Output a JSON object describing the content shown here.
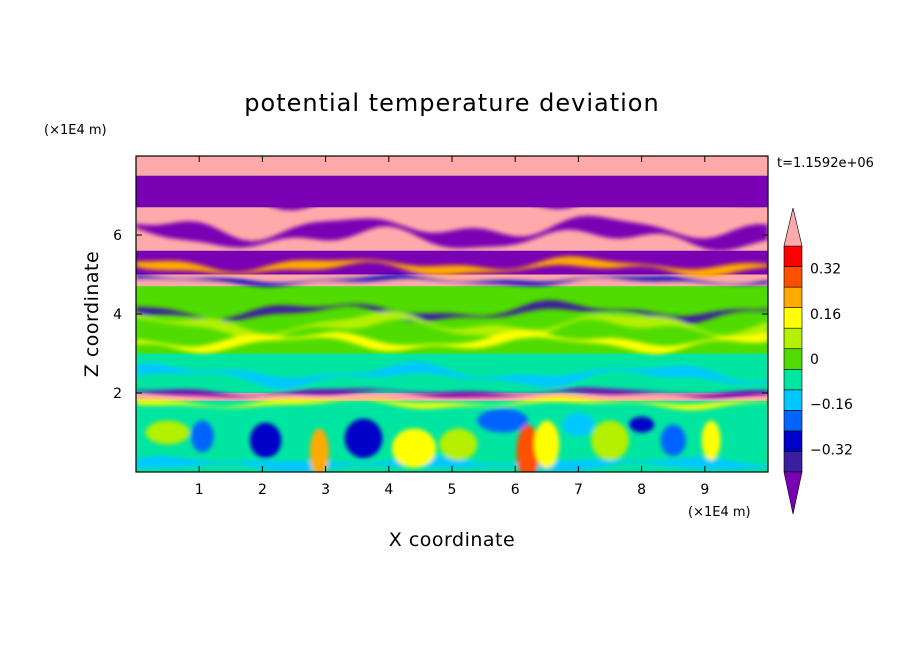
{
  "chart_data": {
    "type": "heatmap",
    "title": "potential temperature deviation",
    "xlabel": "X coordinate",
    "ylabel": "Z coordinate",
    "x_unit": "(×1E4 m)",
    "y_unit": "(×1E4 m)",
    "time_label": "t=1.1592e+06",
    "xlim": [
      0,
      10
    ],
    "ylim": [
      0,
      8
    ],
    "x_ticks": [
      1,
      2,
      3,
      4,
      5,
      6,
      7,
      8,
      9
    ],
    "y_ticks": [
      2,
      4,
      6
    ],
    "colorbar": {
      "levels": [
        -0.4,
        -0.32,
        -0.24,
        -0.16,
        -0.08,
        0,
        0.08,
        0.16,
        0.24,
        0.32,
        0.4
      ],
      "tick_labels": [
        "0.32",
        "0.16",
        "0",
        "−0.16",
        "−0.32"
      ],
      "tick_values": [
        0.32,
        0.16,
        0,
        -0.16,
        -0.32
      ],
      "colors": [
        "#7a00b4",
        "#3c1ea0",
        "#0000c8",
        "#0064ff",
        "#00c8ff",
        "#00e6a0",
        "#50dc00",
        "#b4f000",
        "#ffff00",
        "#ffaa00",
        "#ff5000",
        "#ff0000",
        "#ffaaaa"
      ],
      "extend": "both"
    },
    "bands": [
      {
        "z": [
          7.5,
          8.0
        ],
        "value": 0.45
      },
      {
        "z": [
          6.7,
          7.5
        ],
        "value": -0.45
      },
      {
        "z": [
          5.6,
          6.7
        ],
        "value": 0.45
      },
      {
        "z": [
          5.0,
          5.6
        ],
        "value": -0.45
      },
      {
        "z": [
          4.7,
          5.0
        ],
        "value": 0.45
      },
      {
        "z": [
          3.0,
          4.7
        ],
        "value": 0.05
      },
      {
        "z": [
          2.0,
          3.0
        ],
        "value": -0.02
      },
      {
        "z": [
          1.8,
          2.0
        ],
        "value": 0.45
      },
      {
        "z": [
          0.0,
          1.8
        ],
        "value": -0.05
      }
    ]
  }
}
